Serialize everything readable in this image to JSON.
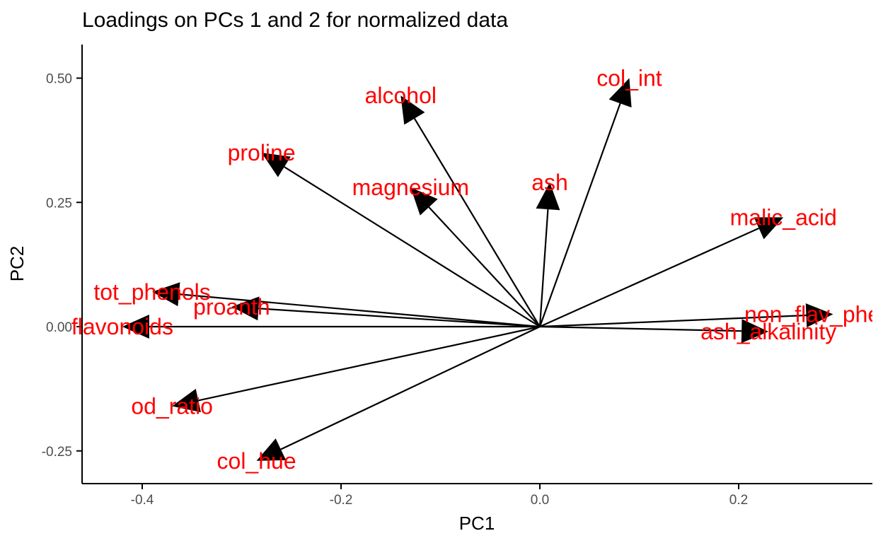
{
  "chart_data": {
    "type": "scatter",
    "subtype": "biplot-loadings-arrows",
    "title": "Loadings on PCs 1 and 2 for normalized data",
    "xlabel": "PC1",
    "ylabel": "PC2",
    "xlim": [
      -0.46,
      0.335
    ],
    "ylim": [
      -0.315,
      0.565
    ],
    "xticks": [
      -0.4,
      -0.2,
      0.0,
      0.2
    ],
    "xtick_labels": [
      "-0.4",
      "-0.2",
      "0.0",
      "0.2"
    ],
    "yticks": [
      -0.25,
      0.0,
      0.25,
      0.5
    ],
    "ytick_labels": [
      "-0.25",
      "0.00",
      "0.25",
      "0.50"
    ],
    "grid": false,
    "arrow_color": "#000000",
    "label_color": "#ff0000",
    "loadings": [
      {
        "name": "alcohol",
        "x": -0.14,
        "y": 0.465
      },
      {
        "name": "col_int",
        "x": 0.09,
        "y": 0.5
      },
      {
        "name": "proline",
        "x": -0.28,
        "y": 0.35
      },
      {
        "name": "magnesium",
        "x": -0.13,
        "y": 0.28
      },
      {
        "name": "ash",
        "x": 0.01,
        "y": 0.29
      },
      {
        "name": "malic_acid",
        "x": 0.245,
        "y": 0.22
      },
      {
        "name": "tot_phenols",
        "x": -0.39,
        "y": 0.07
      },
      {
        "name": "proanth",
        "x": -0.31,
        "y": 0.04
      },
      {
        "name": "flavonoids",
        "x": -0.42,
        "y": 0.0
      },
      {
        "name": "non_flav_phenols",
        "x": 0.295,
        "y": 0.025
      },
      {
        "name": "ash_alkalinity",
        "x": 0.23,
        "y": -0.01
      },
      {
        "name": "od_ratio",
        "x": -0.37,
        "y": -0.16
      },
      {
        "name": "col_hue",
        "x": -0.285,
        "y": -0.27
      }
    ]
  }
}
